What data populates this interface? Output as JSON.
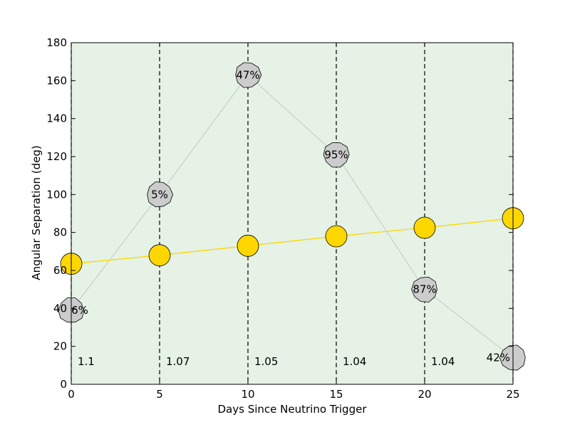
{
  "chart_data": {
    "type": "line",
    "xlabel": "Days Since Neutrino Trigger",
    "ylabel": "Angular Separation (deg)",
    "xlim": [
      0,
      25
    ],
    "ylim": [
      0,
      180
    ],
    "xticks": [
      "0",
      "5",
      "10",
      "15",
      "20",
      "25"
    ],
    "yticks": [
      "0",
      "20",
      "40",
      "60",
      "80",
      "100",
      "120",
      "140",
      "160",
      "180"
    ],
    "grid": false,
    "background_color": "#e5f2e5",
    "vertical_markers": [
      0,
      5,
      10,
      15,
      20,
      25
    ],
    "series": [
      {
        "x": [
          0,
          5,
          10,
          15,
          20,
          25
        ],
        "values": [
          39,
          100,
          163,
          121,
          50,
          14
        ],
        "point_labels": [
          "6%",
          "5%",
          "47%",
          "95%",
          "87%",
          "42%"
        ],
        "marker": "gray-circle",
        "color": "#cccccc",
        "line_color": "#c8d2c8"
      },
      {
        "x": [
          0,
          5,
          10,
          15,
          20,
          25
        ],
        "values": [
          63.5,
          68,
          73,
          78,
          82.5,
          87.5
        ],
        "marker": "gold-circle",
        "color": "#ffd700",
        "line_color": "#ffd700"
      }
    ],
    "bottom_labels": [
      "1.1",
      "1.07",
      "1.05",
      "1.04",
      "1.04",
      ""
    ]
  }
}
